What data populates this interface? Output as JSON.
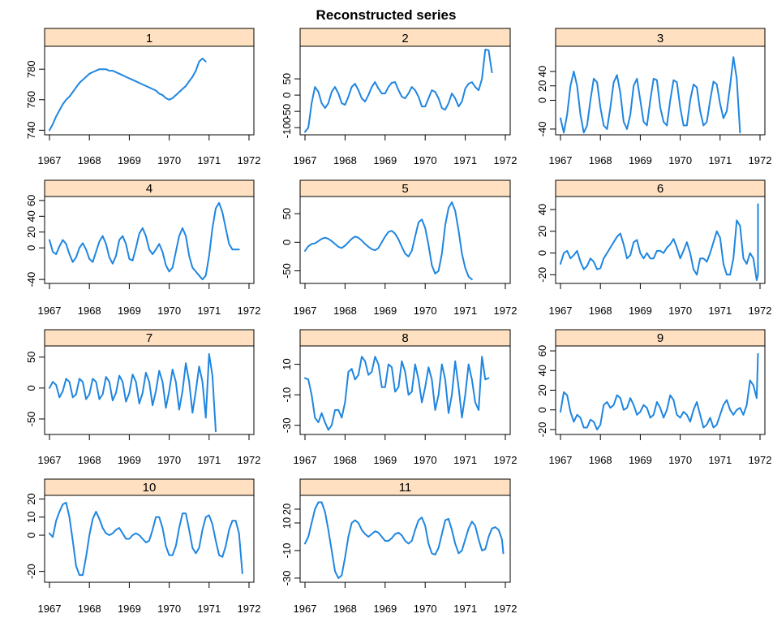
{
  "colors": {
    "line": "#1f86e0",
    "strip": "#ffe0c0",
    "frame": "#000000"
  },
  "chart_data": {
    "type": "line",
    "title": "Reconstructed series",
    "xlabel": "",
    "ylabel": "",
    "x_start": 1967.0,
    "x_step": 0.08333,
    "xlim": [
      1967,
      1972
    ],
    "xticks": [
      1967,
      1968,
      1969,
      1970,
      1971,
      1972
    ],
    "panels": [
      {
        "label": "1",
        "ylim": [
          737,
          795
        ],
        "yticks": [
          740,
          760,
          780
        ],
        "values": [
          740,
          744,
          749,
          753,
          757,
          760,
          762,
          765,
          768,
          771,
          773,
          775,
          777,
          778,
          779,
          780,
          780,
          780,
          779,
          779,
          778,
          777,
          776,
          775,
          774,
          773,
          772,
          771,
          770,
          769,
          768,
          767,
          766,
          764,
          763,
          761,
          760,
          761,
          763,
          765,
          767,
          769,
          772,
          775,
          779,
          785,
          787,
          785
        ]
      },
      {
        "label": "2",
        "ylim": [
          -122,
          150
        ],
        "yticks": [
          -100,
          -50,
          0,
          50
        ],
        "values": [
          -113,
          -100,
          -25,
          25,
          10,
          -25,
          -40,
          -25,
          10,
          25,
          5,
          -25,
          -30,
          -5,
          25,
          35,
          15,
          -10,
          -20,
          0,
          25,
          40,
          20,
          5,
          5,
          25,
          38,
          40,
          15,
          -5,
          -10,
          5,
          25,
          15,
          -5,
          -35,
          -35,
          -10,
          15,
          10,
          -10,
          -40,
          -45,
          -25,
          5,
          -10,
          -35,
          -20,
          20,
          35,
          40,
          25,
          15,
          50,
          140,
          138,
          70
        ]
      },
      {
        "label": "3",
        "ylim": [
          -48,
          75
        ],
        "yticks": [
          -40,
          0,
          20,
          40
        ],
        "values": [
          -25,
          -45,
          -20,
          20,
          40,
          20,
          -20,
          -45,
          -35,
          0,
          30,
          25,
          -10,
          -35,
          -40,
          -10,
          25,
          35,
          10,
          -30,
          -40,
          -20,
          20,
          30,
          0,
          -30,
          -35,
          0,
          30,
          28,
          -10,
          -30,
          -35,
          0,
          28,
          25,
          -10,
          -35,
          -35,
          0,
          22,
          18,
          -15,
          -35,
          -30,
          0,
          26,
          22,
          -5,
          -25,
          -15,
          20,
          60,
          30,
          -45
        ]
      },
      {
        "label": "4",
        "ylim": [
          -45,
          65
        ],
        "yticks": [
          -40,
          0,
          20,
          40,
          60
        ],
        "values": [
          10,
          -5,
          -8,
          2,
          10,
          5,
          -8,
          -18,
          -12,
          0,
          6,
          -2,
          -14,
          -18,
          -5,
          8,
          15,
          5,
          -12,
          -20,
          -10,
          10,
          15,
          5,
          -14,
          -16,
          0,
          18,
          25,
          15,
          -2,
          -8,
          -2,
          5,
          -5,
          -22,
          -30,
          -25,
          -5,
          15,
          25,
          15,
          -10,
          -25,
          -30,
          -35,
          -40,
          -35,
          -10,
          25,
          50,
          57,
          45,
          25,
          5,
          -2,
          -2,
          -2
        ]
      },
      {
        "label": "5",
        "ylim": [
          -72,
          80
        ],
        "yticks": [
          -50,
          0,
          50
        ],
        "values": [
          -15,
          -7,
          -3,
          -2,
          2,
          6,
          8,
          6,
          2,
          -3,
          -8,
          -10,
          -6,
          0,
          6,
          10,
          8,
          3,
          -3,
          -8,
          -12,
          -14,
          -10,
          0,
          10,
          18,
          20,
          15,
          5,
          -8,
          -20,
          -25,
          -15,
          10,
          35,
          40,
          25,
          -5,
          -40,
          -55,
          -50,
          -20,
          30,
          60,
          70,
          55,
          20,
          -20,
          -45,
          -60,
          -65
        ]
      },
      {
        "label": "6",
        "ylim": [
          -28,
          52
        ],
        "yticks": [
          -20,
          0,
          20,
          40
        ],
        "values": [
          -10,
          0,
          2,
          -5,
          -2,
          2,
          -8,
          -15,
          -12,
          -5,
          -8,
          -15,
          -14,
          -5,
          0,
          5,
          10,
          15,
          18,
          8,
          -5,
          -2,
          10,
          12,
          0,
          -5,
          0,
          -5,
          -5,
          2,
          2,
          0,
          5,
          8,
          13,
          5,
          -5,
          2,
          10,
          0,
          -15,
          -20,
          -5,
          -5,
          -8,
          0,
          10,
          20,
          14,
          -10,
          -20,
          -20,
          -5,
          30,
          25,
          -5,
          -10,
          0,
          -5,
          -25,
          -20,
          20,
          45,
          40
        ]
      },
      {
        "label": "7",
        "ylim": [
          -75,
          68
        ],
        "yticks": [
          -50,
          0,
          50
        ],
        "values": [
          0,
          10,
          5,
          -15,
          -5,
          15,
          10,
          -15,
          -10,
          15,
          10,
          -18,
          -10,
          15,
          10,
          -18,
          -10,
          18,
          10,
          -20,
          -8,
          20,
          10,
          -22,
          -8,
          22,
          10,
          -25,
          -8,
          25,
          10,
          -28,
          -5,
          28,
          10,
          -32,
          -5,
          30,
          10,
          -35,
          -5,
          40,
          10,
          -40,
          -5,
          35,
          10,
          -48,
          55,
          20,
          -70
        ]
      },
      {
        "label": "8",
        "ylim": [
          -36,
          22
        ],
        "yticks": [
          -30,
          -10,
          10
        ],
        "values": [
          1,
          0,
          -10,
          -25,
          -28,
          -22,
          -28,
          -33,
          -30,
          -20,
          -20,
          -25,
          -15,
          5,
          7,
          0,
          3,
          15,
          12,
          3,
          5,
          15,
          10,
          -5,
          -5,
          10,
          8,
          -8,
          -5,
          12,
          5,
          -10,
          -8,
          10,
          0,
          -15,
          -5,
          8,
          0,
          -20,
          -10,
          10,
          0,
          -22,
          -10,
          12,
          -5,
          -25,
          -10,
          10,
          0,
          -15,
          -20,
          15,
          0,
          1
        ]
      },
      {
        "label": "9",
        "ylim": [
          -25,
          65
        ],
        "yticks": [
          -20,
          0,
          20,
          40,
          60
        ],
        "values": [
          -2,
          18,
          15,
          -2,
          -12,
          -5,
          -8,
          -18,
          -18,
          -10,
          -12,
          -20,
          -15,
          5,
          8,
          2,
          5,
          15,
          12,
          0,
          2,
          12,
          5,
          -5,
          -2,
          5,
          2,
          -8,
          -5,
          8,
          2,
          -8,
          0,
          15,
          10,
          -5,
          -8,
          -2,
          -5,
          -12,
          0,
          8,
          -5,
          -18,
          -15,
          -8,
          -18,
          -15,
          -5,
          5,
          10,
          0,
          -5,
          0,
          2,
          -5,
          5,
          30,
          25,
          12,
          57
        ]
      },
      {
        "label": "10",
        "ylim": [
          -26,
          22
        ],
        "yticks": [
          -20,
          0,
          10,
          20
        ],
        "values": [
          1,
          -1,
          8,
          13,
          17,
          18,
          10,
          -3,
          -17,
          -22,
          -22,
          -12,
          0,
          9,
          13,
          9,
          4,
          1,
          0,
          1,
          3,
          4,
          1,
          -2,
          -2,
          0,
          1,
          0,
          -2,
          -4,
          -3,
          3,
          10,
          10,
          4,
          -6,
          -11,
          -11,
          -6,
          4,
          12,
          12,
          3,
          -7,
          -10,
          -7,
          3,
          10,
          11,
          6,
          -3,
          -11,
          -12,
          -6,
          3,
          8,
          8,
          1,
          -21
        ]
      },
      {
        "label": "11",
        "ylim": [
          -33,
          30
        ],
        "yticks": [
          -30,
          -10,
          10,
          20
        ],
        "values": [
          -5,
          0,
          10,
          20,
          25,
          25,
          18,
          5,
          -10,
          -25,
          -30,
          -28,
          -15,
          0,
          10,
          12,
          10,
          5,
          2,
          0,
          2,
          4,
          3,
          0,
          -3,
          -3,
          -1,
          2,
          3,
          1,
          -3,
          -5,
          -3,
          5,
          12,
          14,
          8,
          -5,
          -12,
          -13,
          -8,
          2,
          12,
          13,
          5,
          -5,
          -12,
          -10,
          -2,
          6,
          11,
          8,
          -2,
          -10,
          -9,
          0,
          6,
          7,
          5,
          -2,
          -12
        ]
      }
    ]
  }
}
